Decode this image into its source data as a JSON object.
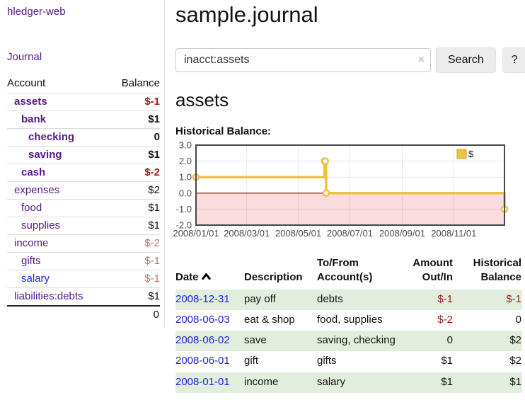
{
  "app": {
    "brand": "hledger-web"
  },
  "nav": {
    "journal": "Journal"
  },
  "sidebar": {
    "accounts_table": {
      "headers": {
        "account": "Account",
        "balance": "Balance"
      },
      "rows": [
        {
          "account": "assets",
          "balance": "$-1",
          "tone": "t-neg",
          "link_class": "a-purple"
        },
        {
          "account": "bank",
          "balance": "$1",
          "tone": "t-plain",
          "link_class": "a-purple"
        },
        {
          "account": "checking",
          "balance": "0",
          "tone": "t-plain",
          "link_class": "a-purple"
        },
        {
          "account": "saving",
          "balance": "$1",
          "tone": "t-plain",
          "link_class": "a-purple"
        },
        {
          "account": "cash",
          "balance": "$-2",
          "tone": "t-neg",
          "link_class": "a-purple"
        },
        {
          "account": "expenses",
          "balance": "$2",
          "tone": "t-plain",
          "link_class": "a-purple"
        },
        {
          "account": "food",
          "balance": "$1",
          "tone": "t-plain",
          "link_class": "a-purple"
        },
        {
          "account": "supplies",
          "balance": "$1",
          "tone": "t-plain",
          "link_class": "a-purple"
        },
        {
          "account": "income",
          "balance": "$-2",
          "tone": "t-soft",
          "link_class": "a-purple"
        },
        {
          "account": "gifts",
          "balance": "$-1",
          "tone": "t-soft",
          "link_class": "a-purple"
        },
        {
          "account": "salary",
          "balance": "$-1",
          "tone": "t-soft",
          "link_class": "a-blue"
        },
        {
          "account": "liabilities:debts",
          "balance": "$1",
          "tone": "t-plain",
          "link_class": "a-purple"
        }
      ],
      "total": "0"
    }
  },
  "header": {
    "title": "sample.journal"
  },
  "search": {
    "query": "inacct:assets",
    "clear_icon": "×",
    "button_label": "Search",
    "help_label": "?"
  },
  "account_page": {
    "heading": "assets",
    "chart_title": "Historical Balance:"
  },
  "chart_data": {
    "type": "line",
    "title": "Historical Balance:",
    "step": true,
    "x_range_days": [
      0,
      365
    ],
    "ylim": [
      -2,
      3
    ],
    "grid": true,
    "legend": {
      "label": "$",
      "position": "top-right"
    },
    "colors": {
      "series": "#EDC240",
      "series_edge": "#c9a52e",
      "marker_fill": "#ffffff",
      "negative_fill": "#fbdcdc",
      "zero_line": "#8b0000",
      "gridline": "rgba(0,0,0,0.09)",
      "border": "#474747",
      "tick_text": "#4a4a4a"
    },
    "series": [
      {
        "name": "$",
        "points": [
          {
            "date": "2008-01-01",
            "day": 0,
            "value": 1
          },
          {
            "date": "2008-06-01",
            "day": 152,
            "value": 2
          },
          {
            "date": "2008-06-02",
            "day": 153,
            "value": 2
          },
          {
            "date": "2008-06-03",
            "day": 154,
            "value": 0
          },
          {
            "date": "2008-12-31",
            "day": 365,
            "value": -1
          }
        ]
      }
    ],
    "x_ticks": [
      {
        "label": "2008/01/01",
        "day": 0
      },
      {
        "label": "2008/03/01",
        "day": 60
      },
      {
        "label": "2008/05/01",
        "day": 121
      },
      {
        "label": "2008/07/01",
        "day": 182
      },
      {
        "label": "2008/09/01",
        "day": 244
      },
      {
        "label": "2008/11/01",
        "day": 305
      }
    ],
    "y_ticks": [
      {
        "label": "3.0",
        "value": 3
      },
      {
        "label": "2.0",
        "value": 2
      },
      {
        "label": "1.0",
        "value": 1
      },
      {
        "label": "0.0",
        "value": 0
      },
      {
        "label": "-1.0",
        "value": -1
      },
      {
        "label": "-2.0",
        "value": -2
      }
    ]
  },
  "register": {
    "headers": {
      "date": "Date",
      "description": "Description",
      "accounts": "To/From Account(s)",
      "amount": "Amount Out/In",
      "balance": "Historical Balance"
    },
    "rows": [
      {
        "date": "2008-12-31",
        "description": "pay off",
        "accounts": "debts",
        "amount": "$-1",
        "amount_tone": "t-neg",
        "balance": "$-1",
        "balance_tone": "t-neg"
      },
      {
        "date": "2008-06-03",
        "description": "eat & shop",
        "accounts": "food, supplies",
        "amount": "$-2",
        "amount_tone": "t-neg",
        "balance": "0",
        "balance_tone": "t-plain"
      },
      {
        "date": "2008-06-02",
        "description": "save",
        "accounts": "saving, checking",
        "amount": "0",
        "amount_tone": "t-plain",
        "balance": "$2",
        "balance_tone": "t-plain"
      },
      {
        "date": "2008-06-01",
        "description": "gift",
        "accounts": "gifts",
        "amount": "$1",
        "amount_tone": "t-plain",
        "balance": "$2",
        "balance_tone": "t-plain"
      },
      {
        "date": "2008-01-01",
        "description": "income",
        "accounts": "salary",
        "amount": "$1",
        "amount_tone": "t-plain",
        "balance": "$1",
        "balance_tone": "t-plain"
      }
    ]
  }
}
